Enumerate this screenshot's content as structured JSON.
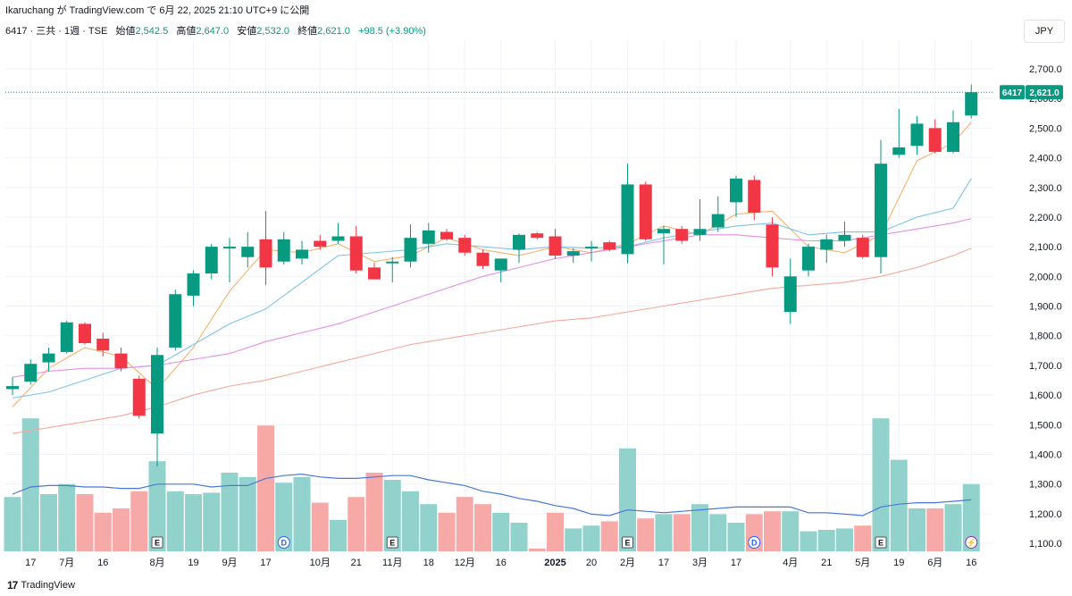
{
  "header": {
    "published": "Ikaruchang が TradingView.com で 6月 22, 2025 21:10 UTC+9 に公開",
    "symbol": "6417 · 三共 · 1週 · TSE",
    "open_label": "始値",
    "open": "2,542.5",
    "high_label": "高値",
    "high": "2,647.0",
    "low_label": "安値",
    "low": "2,532.0",
    "close_label": "終値",
    "close": "2,621.0",
    "change": "+98.5 (+3.90%)",
    "currency": "JPY"
  },
  "footer": {
    "brand_logo": "17",
    "brand": "TradingView"
  },
  "colors": {
    "up": "#089981",
    "down": "#f23645",
    "vol_up": "#92d2cc",
    "vol_down": "#f7a9a7",
    "ma5": "#f6b26b",
    "ma13": "#7cc4e8",
    "ma26": "#e58de8",
    "ma52": "#f5a89a",
    "vol_ma": "#4a78d6"
  },
  "chart_data": {
    "type": "candlestick",
    "price_axis": {
      "min": 1100,
      "max": 2700,
      "ticks": [
        "1,100.0",
        "1,200.0",
        "1,300.0",
        "1,400.0",
        "1,500.0",
        "1,600.0",
        "1,700.0",
        "1,800.0",
        "1,900.0",
        "2,000.0",
        "2,100.0",
        "2,200.0",
        "2,300.0",
        "2,400.0",
        "2,500.0",
        "2,600.0",
        "2,700.0"
      ]
    },
    "last_price": {
      "symbol": "6417",
      "value": "2,621.0"
    },
    "time_labels": [
      {
        "i": 1,
        "text": "17"
      },
      {
        "i": 3,
        "text": "7月"
      },
      {
        "i": 5,
        "text": "16"
      },
      {
        "i": 8,
        "text": "8月"
      },
      {
        "i": 10,
        "text": "19"
      },
      {
        "i": 12,
        "text": "9月"
      },
      {
        "i": 14,
        "text": "17"
      },
      {
        "i": 17,
        "text": "10月"
      },
      {
        "i": 19,
        "text": "21"
      },
      {
        "i": 21,
        "text": "11月"
      },
      {
        "i": 23,
        "text": "18"
      },
      {
        "i": 25,
        "text": "12月"
      },
      {
        "i": 27,
        "text": "16"
      },
      {
        "i": 30,
        "text": "2025"
      },
      {
        "i": 32,
        "text": "20"
      },
      {
        "i": 34,
        "text": "2月"
      },
      {
        "i": 36,
        "text": "17"
      },
      {
        "i": 38,
        "text": "3月"
      },
      {
        "i": 40,
        "text": "17"
      },
      {
        "i": 43,
        "text": "4月"
      },
      {
        "i": 45,
        "text": "21"
      },
      {
        "i": 47,
        "text": "5月"
      },
      {
        "i": 49,
        "text": "19"
      },
      {
        "i": 51,
        "text": "6月"
      },
      {
        "i": 53,
        "text": "16"
      }
    ],
    "candles": [
      {
        "o": 1620,
        "h": 1660,
        "l": 1600,
        "c": 1630,
        "v": 0.38
      },
      {
        "o": 1645,
        "h": 1720,
        "l": 1635,
        "c": 1705,
        "v": 0.93
      },
      {
        "o": 1710,
        "h": 1760,
        "l": 1680,
        "c": 1740,
        "v": 0.4
      },
      {
        "o": 1745,
        "h": 1850,
        "l": 1740,
        "c": 1845,
        "v": 0.47
      },
      {
        "o": 1840,
        "h": 1845,
        "l": 1770,
        "c": 1775,
        "v": 0.4
      },
      {
        "o": 1790,
        "h": 1810,
        "l": 1730,
        "c": 1750,
        "v": 0.27
      },
      {
        "o": 1740,
        "h": 1760,
        "l": 1680,
        "c": 1690,
        "v": 0.3
      },
      {
        "o": 1655,
        "h": 1665,
        "l": 1520,
        "c": 1530,
        "v": 0.42
      },
      {
        "o": 1470,
        "h": 1760,
        "l": 1360,
        "c": 1735,
        "v": 0.63
      },
      {
        "o": 1760,
        "h": 1955,
        "l": 1750,
        "c": 1940,
        "v": 0.42
      },
      {
        "o": 1935,
        "h": 2020,
        "l": 1900,
        "c": 2010,
        "v": 0.4
      },
      {
        "o": 2010,
        "h": 2110,
        "l": 1990,
        "c": 2100,
        "v": 0.41
      },
      {
        "o": 2100,
        "h": 2130,
        "l": 1980,
        "c": 2100,
        "v": 0.55
      },
      {
        "o": 2065,
        "h": 2150,
        "l": 2030,
        "c": 2100,
        "v": 0.52
      },
      {
        "o": 2125,
        "h": 2220,
        "l": 1970,
        "c": 2030,
        "v": 0.88
      },
      {
        "o": 2050,
        "h": 2150,
        "l": 2040,
        "c": 2125,
        "v": 0.48
      },
      {
        "o": 2060,
        "h": 2120,
        "l": 2040,
        "c": 2090,
        "v": 0.52
      },
      {
        "o": 2120,
        "h": 2140,
        "l": 2090,
        "c": 2100,
        "v": 0.34
      },
      {
        "o": 2120,
        "h": 2180,
        "l": 2110,
        "c": 2135,
        "v": 0.22
      },
      {
        "o": 2135,
        "h": 2170,
        "l": 2010,
        "c": 2020,
        "v": 0.38
      },
      {
        "o": 2030,
        "h": 2045,
        "l": 1990,
        "c": 1990,
        "v": 0.55
      },
      {
        "o": 2045,
        "h": 2065,
        "l": 1980,
        "c": 2050,
        "v": 0.5
      },
      {
        "o": 2050,
        "h": 2175,
        "l": 2030,
        "c": 2130,
        "v": 0.42
      },
      {
        "o": 2110,
        "h": 2180,
        "l": 2080,
        "c": 2155,
        "v": 0.33
      },
      {
        "o": 2150,
        "h": 2160,
        "l": 2120,
        "c": 2125,
        "v": 0.27
      },
      {
        "o": 2130,
        "h": 2140,
        "l": 2070,
        "c": 2080,
        "v": 0.38
      },
      {
        "o": 2080,
        "h": 2090,
        "l": 2025,
        "c": 2035,
        "v": 0.33
      },
      {
        "o": 2020,
        "h": 2060,
        "l": 1980,
        "c": 2060,
        "v": 0.27
      },
      {
        "o": 2090,
        "h": 2145,
        "l": 2045,
        "c": 2140,
        "v": 0.2
      },
      {
        "o": 2145,
        "h": 2150,
        "l": 2125,
        "c": 2130,
        "v": 0.02
      },
      {
        "o": 2135,
        "h": 2160,
        "l": 2060,
        "c": 2070,
        "v": 0.27
      },
      {
        "o": 2070,
        "h": 2095,
        "l": 2045,
        "c": 2085,
        "v": 0.16
      },
      {
        "o": 2100,
        "h": 2120,
        "l": 2050,
        "c": 2100,
        "v": 0.18
      },
      {
        "o": 2115,
        "h": 2120,
        "l": 2085,
        "c": 2090,
        "v": 0.21
      },
      {
        "o": 2075,
        "h": 2380,
        "l": 2045,
        "c": 2310,
        "v": 0.72
      },
      {
        "o": 2310,
        "h": 2320,
        "l": 2120,
        "c": 2125,
        "v": 0.23
      },
      {
        "o": 2145,
        "h": 2170,
        "l": 2040,
        "c": 2160,
        "v": 0.26
      },
      {
        "o": 2160,
        "h": 2170,
        "l": 2110,
        "c": 2120,
        "v": 0.26
      },
      {
        "o": 2140,
        "h": 2260,
        "l": 2120,
        "c": 2160,
        "v": 0.33
      },
      {
        "o": 2165,
        "h": 2270,
        "l": 2150,
        "c": 2210,
        "v": 0.26
      },
      {
        "o": 2250,
        "h": 2340,
        "l": 2200,
        "c": 2330,
        "v": 0.2
      },
      {
        "o": 2325,
        "h": 2340,
        "l": 2190,
        "c": 2215,
        "v": 0.26
      },
      {
        "o": 2175,
        "h": 2200,
        "l": 2000,
        "c": 2030,
        "v": 0.28
      },
      {
        "o": 1880,
        "h": 2060,
        "l": 1840,
        "c": 2000,
        "v": 0.28
      },
      {
        "o": 2020,
        "h": 2110,
        "l": 2000,
        "c": 2100,
        "v": 0.14
      },
      {
        "o": 2090,
        "h": 2140,
        "l": 2045,
        "c": 2125,
        "v": 0.15
      },
      {
        "o": 2120,
        "h": 2185,
        "l": 2100,
        "c": 2140,
        "v": 0.16
      },
      {
        "o": 2130,
        "h": 2140,
        "l": 2060,
        "c": 2065,
        "v": 0.18
      },
      {
        "o": 2065,
        "h": 2460,
        "l": 2010,
        "c": 2380,
        "v": 0.93
      },
      {
        "o": 2410,
        "h": 2565,
        "l": 2400,
        "c": 2435,
        "v": 0.64
      },
      {
        "o": 2440,
        "h": 2540,
        "l": 2410,
        "c": 2515,
        "v": 0.3
      },
      {
        "o": 2500,
        "h": 2530,
        "l": 2415,
        "c": 2420,
        "v": 0.3
      },
      {
        "o": 2420,
        "h": 2560,
        "l": 2415,
        "c": 2520,
        "v": 0.33
      },
      {
        "o": 2542.5,
        "h": 2647,
        "l": 2532,
        "c": 2621,
        "v": 0.47
      }
    ],
    "moving_averages": [
      {
        "color": "ma5",
        "points": [
          [
            0,
            1560
          ],
          [
            2,
            1690
          ],
          [
            4,
            1760
          ],
          [
            6,
            1730
          ],
          [
            8,
            1620
          ],
          [
            10,
            1760
          ],
          [
            12,
            1950
          ],
          [
            14,
            2090
          ],
          [
            16,
            2080
          ],
          [
            18,
            2110
          ],
          [
            20,
            2050
          ],
          [
            22,
            2070
          ],
          [
            24,
            2130
          ],
          [
            26,
            2090
          ],
          [
            28,
            2070
          ],
          [
            30,
            2100
          ],
          [
            32,
            2080
          ],
          [
            34,
            2110
          ],
          [
            36,
            2170
          ],
          [
            38,
            2140
          ],
          [
            40,
            2210
          ],
          [
            42,
            2220
          ],
          [
            44,
            2100
          ],
          [
            46,
            2080
          ],
          [
            48,
            2140
          ],
          [
            50,
            2390
          ],
          [
            52,
            2450
          ],
          [
            53,
            2520
          ]
        ]
      },
      {
        "color": "ma13",
        "points": [
          [
            0,
            1590
          ],
          [
            2,
            1610
          ],
          [
            4,
            1650
          ],
          [
            6,
            1690
          ],
          [
            8,
            1700
          ],
          [
            10,
            1770
          ],
          [
            12,
            1840
          ],
          [
            14,
            1890
          ],
          [
            16,
            1980
          ],
          [
            18,
            2070
          ],
          [
            20,
            2080
          ],
          [
            22,
            2090
          ],
          [
            24,
            2110
          ],
          [
            26,
            2100
          ],
          [
            28,
            2090
          ],
          [
            30,
            2100
          ],
          [
            32,
            2095
          ],
          [
            34,
            2100
          ],
          [
            36,
            2130
          ],
          [
            38,
            2150
          ],
          [
            40,
            2170
          ],
          [
            42,
            2180
          ],
          [
            44,
            2140
          ],
          [
            46,
            2150
          ],
          [
            48,
            2150
          ],
          [
            50,
            2200
          ],
          [
            52,
            2230
          ],
          [
            53,
            2330
          ]
        ]
      },
      {
        "color": "ma26",
        "points": [
          [
            0,
            1660
          ],
          [
            2,
            1680
          ],
          [
            4,
            1690
          ],
          [
            6,
            1690
          ],
          [
            8,
            1700
          ],
          [
            10,
            1720
          ],
          [
            12,
            1740
          ],
          [
            14,
            1780
          ],
          [
            16,
            1810
          ],
          [
            18,
            1840
          ],
          [
            20,
            1880
          ],
          [
            22,
            1920
          ],
          [
            24,
            1960
          ],
          [
            26,
            2000
          ],
          [
            28,
            2030
          ],
          [
            30,
            2060
          ],
          [
            32,
            2080
          ],
          [
            34,
            2100
          ],
          [
            36,
            2120
          ],
          [
            38,
            2140
          ],
          [
            40,
            2140
          ],
          [
            42,
            2130
          ],
          [
            44,
            2120
          ],
          [
            46,
            2120
          ],
          [
            48,
            2140
          ],
          [
            50,
            2160
          ],
          [
            52,
            2180
          ],
          [
            53,
            2195
          ]
        ]
      },
      {
        "color": "ma52",
        "points": [
          [
            0,
            1470
          ],
          [
            2,
            1490
          ],
          [
            4,
            1510
          ],
          [
            6,
            1530
          ],
          [
            8,
            1560
          ],
          [
            10,
            1600
          ],
          [
            12,
            1630
          ],
          [
            14,
            1650
          ],
          [
            16,
            1680
          ],
          [
            18,
            1710
          ],
          [
            20,
            1740
          ],
          [
            22,
            1770
          ],
          [
            24,
            1790
          ],
          [
            26,
            1810
          ],
          [
            28,
            1830
          ],
          [
            30,
            1850
          ],
          [
            32,
            1860
          ],
          [
            34,
            1880
          ],
          [
            36,
            1900
          ],
          [
            38,
            1920
          ],
          [
            40,
            1940
          ],
          [
            42,
            1960
          ],
          [
            44,
            1970
          ],
          [
            46,
            1980
          ],
          [
            48,
            2000
          ],
          [
            50,
            2030
          ],
          [
            52,
            2070
          ],
          [
            53,
            2095
          ]
        ]
      }
    ],
    "volume_ma": [
      [
        0,
        0.4
      ],
      [
        1,
        0.45
      ],
      [
        2,
        0.46
      ],
      [
        3,
        0.46
      ],
      [
        4,
        0.45
      ],
      [
        5,
        0.45
      ],
      [
        6,
        0.44
      ],
      [
        7,
        0.44
      ],
      [
        8,
        0.47
      ],
      [
        9,
        0.47
      ],
      [
        10,
        0.47
      ],
      [
        11,
        0.45
      ],
      [
        12,
        0.46
      ],
      [
        13,
        0.46
      ],
      [
        14,
        0.51
      ],
      [
        15,
        0.53
      ],
      [
        16,
        0.54
      ],
      [
        17,
        0.52
      ],
      [
        18,
        0.51
      ],
      [
        19,
        0.51
      ],
      [
        20,
        0.52
      ],
      [
        21,
        0.53
      ],
      [
        22,
        0.53
      ],
      [
        23,
        0.5
      ],
      [
        24,
        0.48
      ],
      [
        25,
        0.46
      ],
      [
        26,
        0.42
      ],
      [
        27,
        0.4
      ],
      [
        28,
        0.37
      ],
      [
        29,
        0.35
      ],
      [
        30,
        0.32
      ],
      [
        31,
        0.3
      ],
      [
        32,
        0.26
      ],
      [
        33,
        0.25
      ],
      [
        34,
        0.29
      ],
      [
        35,
        0.28
      ],
      [
        36,
        0.27
      ],
      [
        37,
        0.28
      ],
      [
        38,
        0.29
      ],
      [
        39,
        0.3
      ],
      [
        40,
        0.31
      ],
      [
        41,
        0.31
      ],
      [
        42,
        0.31
      ],
      [
        43,
        0.31
      ],
      [
        44,
        0.27
      ],
      [
        45,
        0.27
      ],
      [
        46,
        0.26
      ],
      [
        47,
        0.25
      ],
      [
        48,
        0.31
      ],
      [
        49,
        0.33
      ],
      [
        50,
        0.34
      ],
      [
        51,
        0.34
      ],
      [
        52,
        0.35
      ],
      [
        53,
        0.36
      ]
    ],
    "event_markers": [
      {
        "i": 8,
        "label": "E",
        "kind": "square"
      },
      {
        "i": 15,
        "label": "D",
        "kind": "circle"
      },
      {
        "i": 21,
        "label": "E",
        "kind": "square"
      },
      {
        "i": 34,
        "label": "E",
        "kind": "square"
      },
      {
        "i": 41,
        "label": "D",
        "kind": "circle"
      },
      {
        "i": 48,
        "label": "E",
        "kind": "square"
      },
      {
        "i": 53,
        "label": "⚡",
        "kind": "circle-purple"
      }
    ]
  }
}
